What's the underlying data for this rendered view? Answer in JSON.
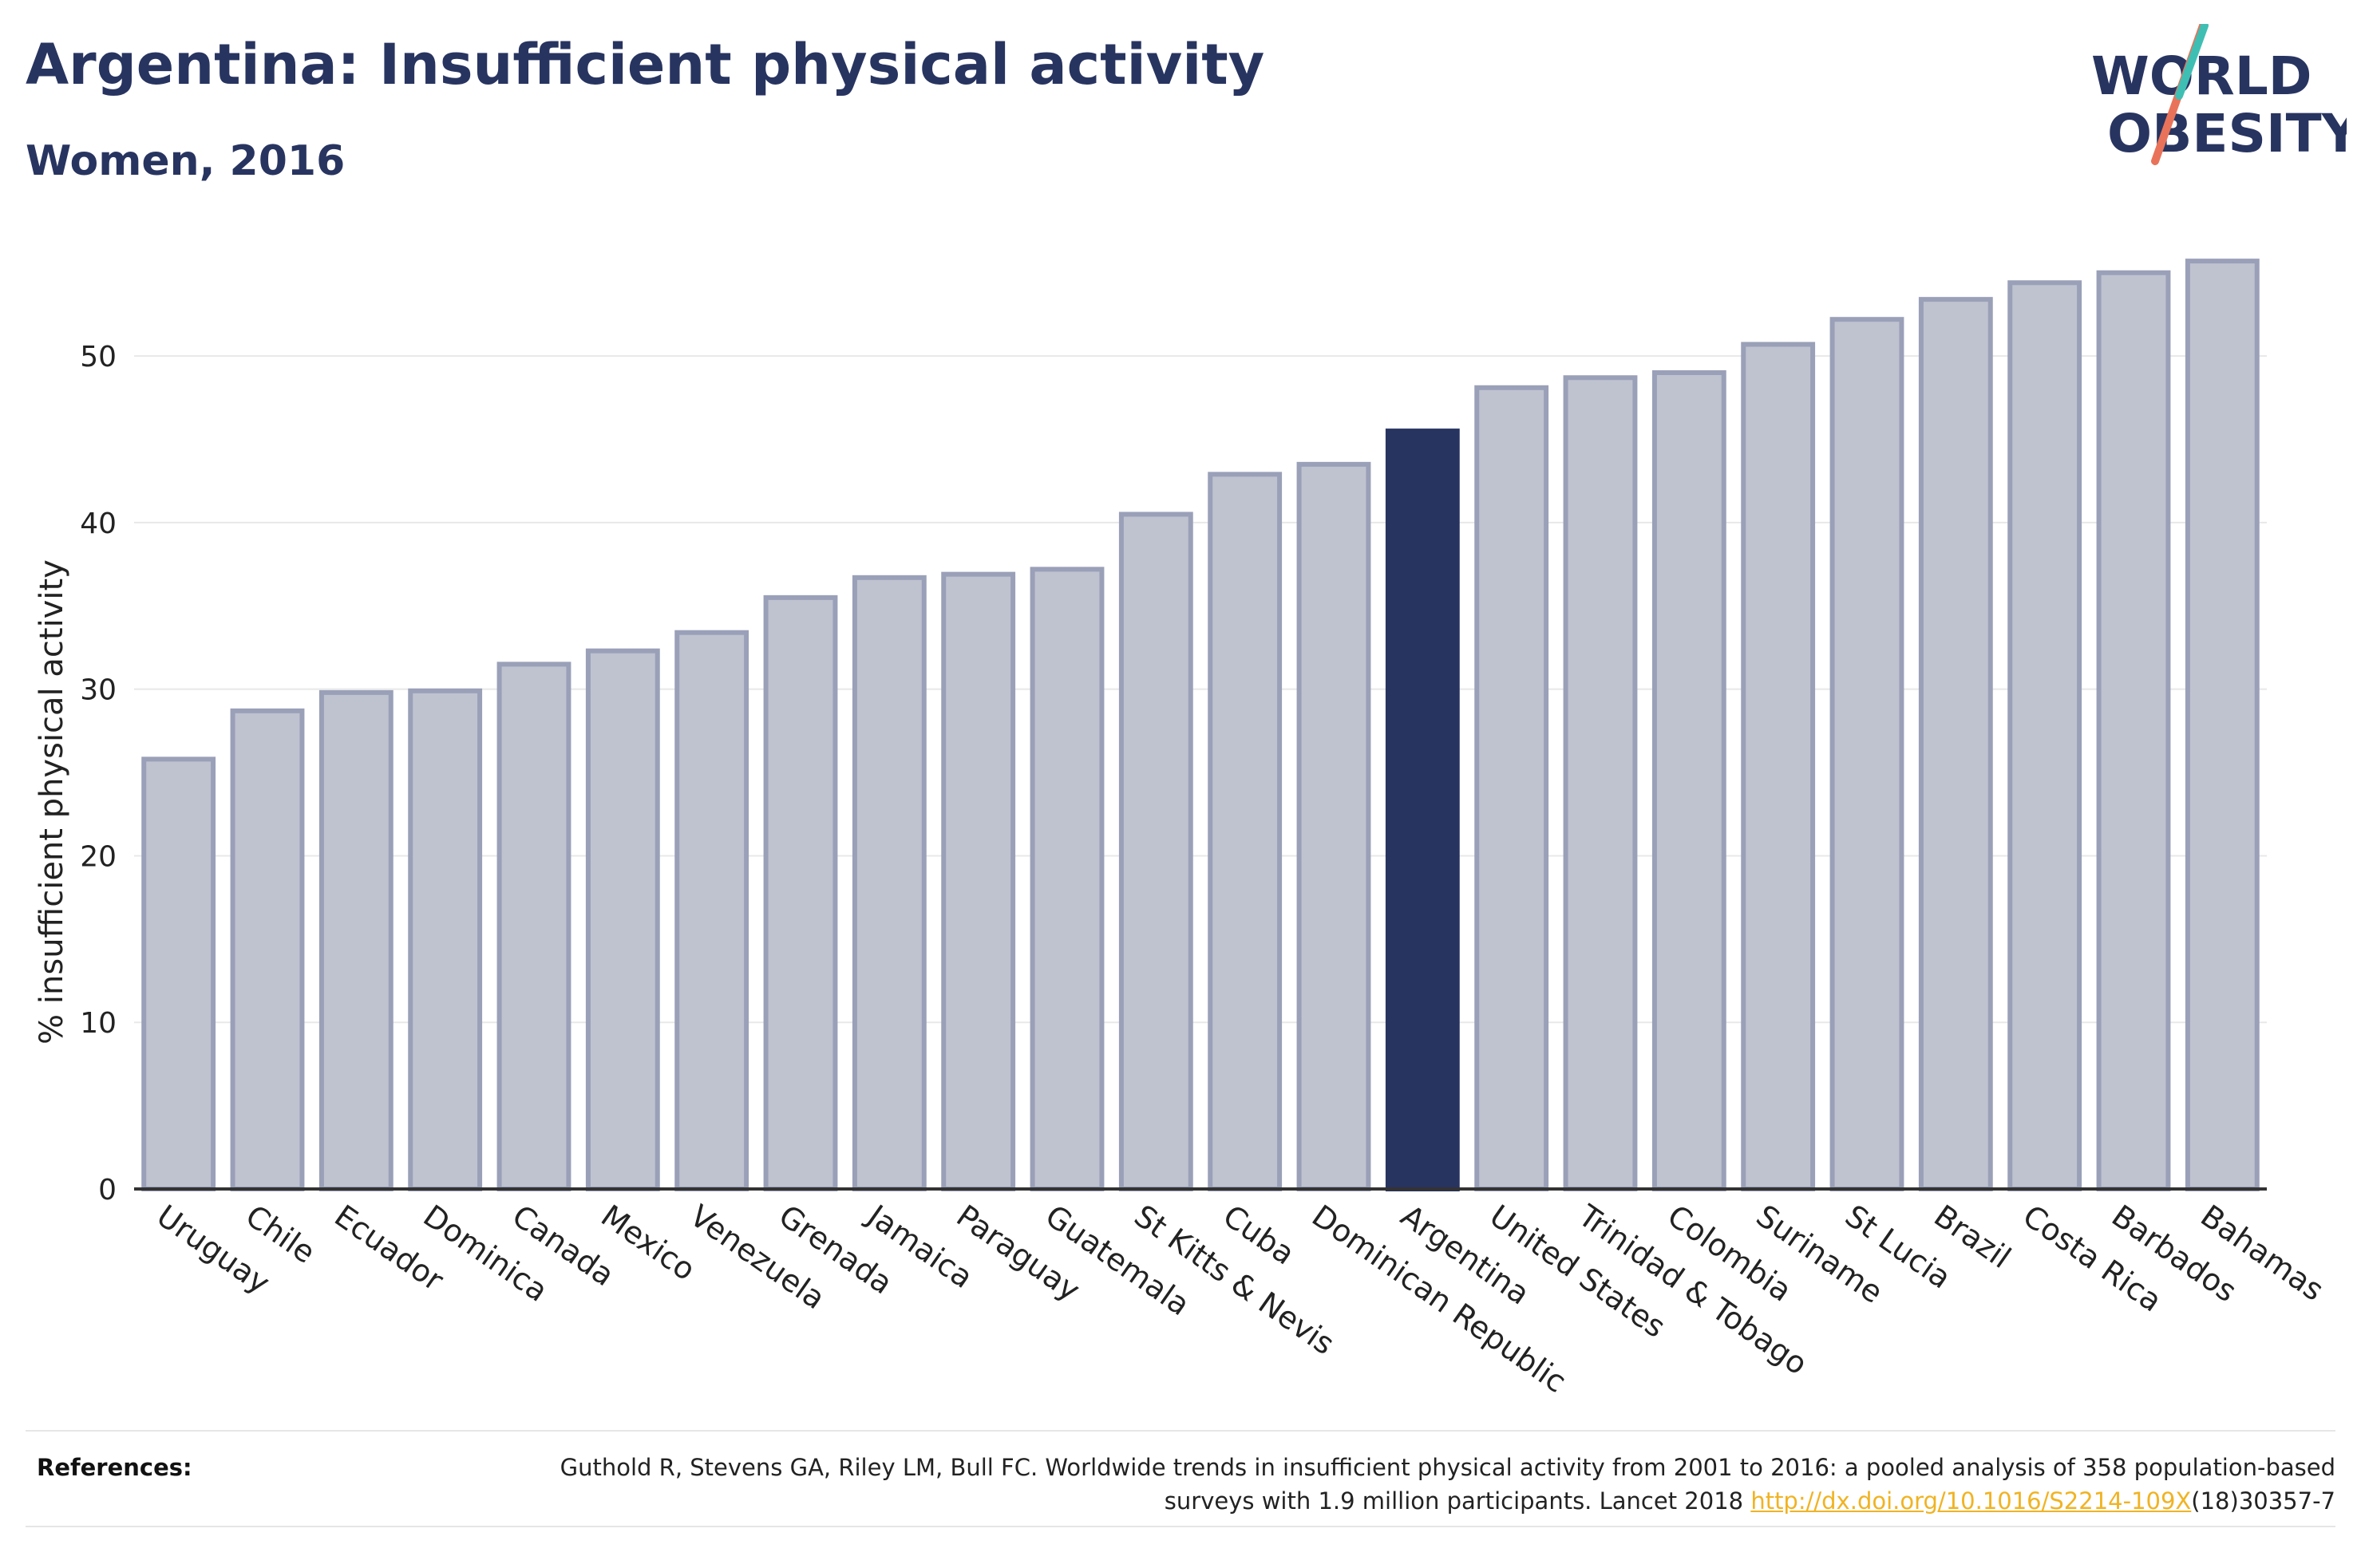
{
  "header": {
    "title": "Argentina: Insufficient physical activity",
    "subtitle": "Women, 2016"
  },
  "logo": {
    "line1": "WORLD",
    "line2": "OBESITY"
  },
  "chart_data": {
    "type": "bar",
    "title": "Argentina: Insufficient physical activity",
    "subtitle": "Women, 2016",
    "xlabel": "",
    "ylabel": "% insufficient physical activity",
    "ylim": [
      0,
      57
    ],
    "yticks": [
      0,
      10,
      20,
      30,
      40,
      50
    ],
    "grid": true,
    "highlight": "Argentina",
    "categories": [
      "Uruguay",
      "Chile",
      "Ecuador",
      "Dominica",
      "Canada",
      "Mexico",
      "Venezuela",
      "Grenada",
      "Jamaica",
      "Paraguay",
      "Guatemala",
      "St Kitts & Nevis",
      "Cuba",
      "Dominican Republic",
      "Argentina",
      "United States",
      "Trinidad & Tobago",
      "Colombia",
      "Suriname",
      "St Lucia",
      "Brazil",
      "Costa Rica",
      "Barbados",
      "Bahamas"
    ],
    "values": [
      25.8,
      28.7,
      29.8,
      29.9,
      31.5,
      32.3,
      33.4,
      35.5,
      36.7,
      36.9,
      37.2,
      40.5,
      42.9,
      43.5,
      45.5,
      48.1,
      48.7,
      49.0,
      50.7,
      52.2,
      53.4,
      54.4,
      55.0,
      55.7
    ],
    "colors": {
      "bar": "#bfc3d0",
      "bar_edge": "#9aa0b8",
      "highlight": "#283460",
      "axis": "#333333",
      "grid": "#e8e8e8"
    }
  },
  "references": {
    "label": "References:",
    "text_before": "Guthold R, Stevens GA, Riley LM, Bull FC. Worldwide trends in insufficient physical activity from 2001 to 2016: a pooled analysis of 358 population-based surveys with 1.9 million participants. Lancet 2018 ",
    "link": "http://dx.doi.org/10.1016/S2214-109X",
    "text_after": "(18)30357-7"
  }
}
